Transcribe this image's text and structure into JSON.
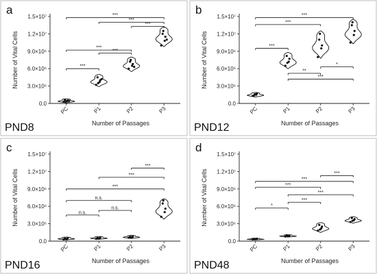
{
  "chart_data": [
    {
      "type": "violin",
      "panel_letter": "a",
      "panel_label": "PND8",
      "xlabel": "Number of Passages",
      "ylabel": "Number of Vital Cells",
      "categories": [
        "PC",
        "P1",
        "P2",
        "P3"
      ],
      "yticks": [
        "0.0",
        "3.0×10⁶",
        "6.0×10⁶",
        "9.0×10⁶",
        "1.2×10⁷",
        "1.5×10⁷"
      ],
      "ylim": [
        0,
        15000000
      ],
      "groups": [
        {
          "name": "PC",
          "points": [
            300000,
            400000,
            500000,
            600000,
            350000,
            450000
          ]
        },
        {
          "name": "P1",
          "points": [
            3200000,
            3700000,
            4000000,
            4500000,
            3500000,
            4200000
          ]
        },
        {
          "name": "P2",
          "points": [
            6000000,
            6500000,
            6800000,
            7200000,
            7500000,
            6300000
          ]
        },
        {
          "name": "P3",
          "points": [
            10000000,
            10800000,
            11500000,
            12000000,
            12500000,
            11000000
          ]
        }
      ],
      "violin_extent": [
        [
          100000,
          800000
        ],
        [
          2900000,
          5000000
        ],
        [
          5500000,
          8000000
        ],
        [
          9800000,
          13200000
        ]
      ],
      "comparisons": [
        {
          "from": "PC",
          "to": "P1",
          "y": 6000000,
          "label": "***"
        },
        {
          "from": "PC",
          "to": "P2",
          "y": 9200000,
          "label": "***"
        },
        {
          "from": "P1",
          "to": "P2",
          "y": 8700000,
          "label": "***"
        },
        {
          "from": "PC",
          "to": "P3",
          "y": 14800000,
          "label": "***"
        },
        {
          "from": "P1",
          "to": "P3",
          "y": 14000000,
          "label": "***"
        },
        {
          "from": "P2",
          "to": "P3",
          "y": 13300000,
          "label": "***"
        }
      ]
    },
    {
      "type": "violin",
      "panel_letter": "b",
      "panel_label": "PND12",
      "xlabel": "Number of Passages",
      "ylabel": "Number of Vital Cells",
      "categories": [
        "PC",
        "P1",
        "P2",
        "P3"
      ],
      "yticks": [
        "0.0",
        "3.0×10⁶",
        "6.0×10⁶",
        "9.0×10⁶",
        "1.2×10⁷",
        "1.5×10⁷"
      ],
      "ylim": [
        0,
        15000000
      ],
      "groups": [
        {
          "name": "PC",
          "points": [
            1300000,
            1500000,
            1700000,
            1400000,
            1600000
          ]
        },
        {
          "name": "P1",
          "points": [
            6500000,
            7200000,
            7700000,
            8200000,
            7000000
          ]
        },
        {
          "name": "P2",
          "points": [
            8000000,
            9500000,
            10000000,
            11000000,
            12000000
          ]
        },
        {
          "name": "P3",
          "points": [
            10500000,
            11800000,
            12500000,
            13500000,
            14000000
          ]
        }
      ],
      "violin_extent": [
        [
          1100000,
          1900000
        ],
        [
          6000000,
          8800000
        ],
        [
          7800000,
          12500000
        ],
        [
          10300000,
          14500000
        ]
      ],
      "comparisons": [
        {
          "from": "PC",
          "to": "P1",
          "y": 9500000,
          "label": "***"
        },
        {
          "from": "PC",
          "to": "P2",
          "y": 13600000,
          "label": "***"
        },
        {
          "from": "PC",
          "to": "P3",
          "y": 14800000,
          "label": "***"
        },
        {
          "from": "P1",
          "to": "P2",
          "y": 5200000,
          "label": "**"
        },
        {
          "from": "P2",
          "to": "P3",
          "y": 6300000,
          "label": "*"
        },
        {
          "from": "P1",
          "to": "P3",
          "y": 4200000,
          "label": "***"
        }
      ]
    },
    {
      "type": "violin",
      "panel_letter": "c",
      "panel_label": "PND16",
      "xlabel": "Number of Passages",
      "ylabel": "Number of Vital Cells",
      "categories": [
        "PC",
        "P1",
        "P2",
        "P3"
      ],
      "yticks": [
        "0.0",
        "3.0×10⁶",
        "6.0×10⁶",
        "9.0×10⁶",
        "1.2×10⁷",
        "1.5×10⁷"
      ],
      "ylim": [
        0,
        15000000
      ],
      "groups": [
        {
          "name": "PC",
          "points": [
            300000,
            400000,
            500000,
            450000,
            350000
          ]
        },
        {
          "name": "P1",
          "points": [
            400000,
            500000,
            600000,
            550000,
            450000
          ]
        },
        {
          "name": "P2",
          "points": [
            600000,
            700000,
            800000,
            750000,
            650000
          ]
        },
        {
          "name": "P3",
          "points": [
            4200000,
            5000000,
            5600000,
            6500000,
            7000000
          ]
        }
      ],
      "violin_extent": [
        [
          200000,
          700000
        ],
        [
          300000,
          800000
        ],
        [
          450000,
          1000000
        ],
        [
          3800000,
          7300000
        ]
      ],
      "comparisons": [
        {
          "from": "PC",
          "to": "P1",
          "y": 4500000,
          "label": "n.s."
        },
        {
          "from": "P1",
          "to": "P2",
          "y": 5300000,
          "label": "n.s."
        },
        {
          "from": "PC",
          "to": "P2",
          "y": 7000000,
          "label": "n.s."
        },
        {
          "from": "PC",
          "to": "P3",
          "y": 9000000,
          "label": "***"
        },
        {
          "from": "P1",
          "to": "P3",
          "y": 11000000,
          "label": "***"
        },
        {
          "from": "P2",
          "to": "P3",
          "y": 12600000,
          "label": "***"
        }
      ]
    },
    {
      "type": "violin",
      "panel_letter": "d",
      "panel_label": "PND48",
      "xlabel": "Number of Passages",
      "ylabel": "Number of Vital Cells",
      "categories": [
        "PC",
        "P1",
        "P2",
        "P3"
      ],
      "yticks": [
        "0.0",
        "3.0×10⁶",
        "6.0×10⁶",
        "9.0×10⁶",
        "1.2×10⁷",
        "1.5×10⁷"
      ],
      "ylim": [
        0,
        15000000
      ],
      "groups": [
        {
          "name": "PC",
          "points": [
            300000,
            350000,
            400000,
            380000,
            320000
          ]
        },
        {
          "name": "P1",
          "points": [
            800000,
            900000,
            950000,
            1000000,
            870000
          ]
        },
        {
          "name": "P2",
          "points": [
            1800000,
            2200000,
            2500000,
            2800000,
            2000000
          ]
        },
        {
          "name": "P3",
          "points": [
            3300000,
            3600000,
            3800000,
            4000000,
            3500000
          ]
        }
      ],
      "violin_extent": [
        [
          200000,
          500000
        ],
        [
          700000,
          1100000
        ],
        [
          1500000,
          3200000
        ],
        [
          3100000,
          4200000
        ]
      ],
      "comparisons": [
        {
          "from": "PC",
          "to": "P1",
          "y": 5700000,
          "label": "*"
        },
        {
          "from": "P1",
          "to": "P2",
          "y": 6700000,
          "label": "***"
        },
        {
          "from": "P1",
          "to": "P3",
          "y": 8000000,
          "label": "***"
        },
        {
          "from": "PC",
          "to": "P2",
          "y": 9300000,
          "label": "***"
        },
        {
          "from": "PC",
          "to": "P3",
          "y": 10300000,
          "label": "***"
        },
        {
          "from": "P2",
          "to": "P3",
          "y": 11300000,
          "label": "***"
        }
      ]
    }
  ]
}
